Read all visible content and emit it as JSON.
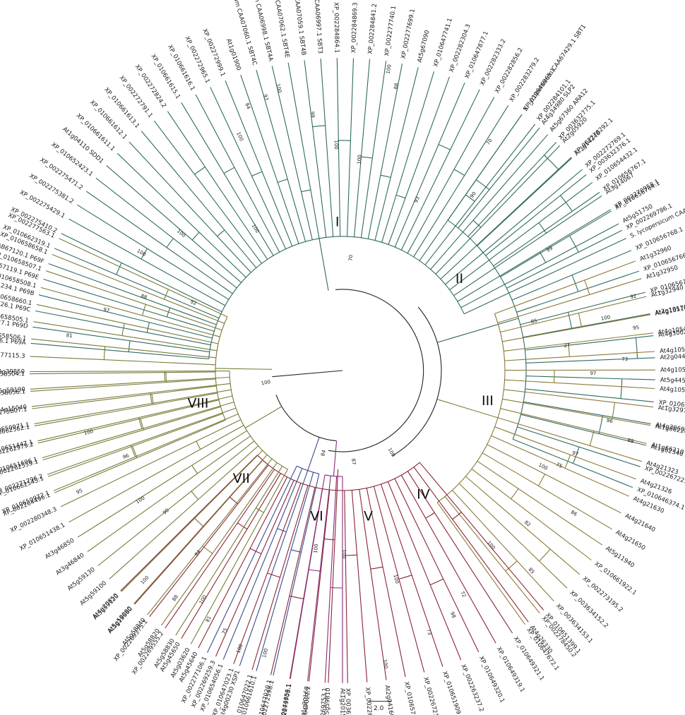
{
  "tree": {
    "scale_label": "2.0",
    "clades": [
      {
        "label": "I",
        "color": "#2f6b60",
        "deg": -92
      },
      {
        "label": "II",
        "color": "#2f6b60",
        "deg": -38
      },
      {
        "label": "III",
        "color": "#8a7a38",
        "deg": 12
      },
      {
        "label": "IV",
        "color": "#8a2535",
        "deg": 57
      },
      {
        "label": "V",
        "color": "#8a2a7a",
        "deg": 80
      },
      {
        "label": "VI",
        "color": "#3a4b8c",
        "deg": 100
      },
      {
        "label": "VII",
        "color": "#7a7a3a",
        "deg": 133
      },
      {
        "label": "VIII",
        "color": "#7a7a3a",
        "deg": 167
      }
    ],
    "groups": [
      {
        "color": "#2f6b60",
        "start": -175,
        "step": 3.0,
        "tips": [
          "S. lycopersicum CAA64566.1 P69A",
          "S. lycopersicum CAA76727.1 P69D",
          "S. lycopersicum CAA76726.1 P69C",
          "S. lycopersicum CAA71234.1 P69B",
          "S. lycopersicum CAB67119.1 P69E",
          "S. lycopersicum CAB67120.1 P69F",
          "XP_010662319.1",
          "XP_002275410.2",
          "XP_002275429.1",
          "XP_002275381.2",
          "XP_002275471.2",
          "XP_010652423.1",
          "At1g04110 SDD1",
          "XP_010661611.1",
          "XP_010661612.1",
          "XP_010661613.1",
          "XP_002272791.1",
          "XP_002272824.2",
          "XP_010661615.1",
          "XP_010661616.1",
          "XP_002272965.1",
          "XP_002272999.1",
          "At1g01900",
          "S. lycopersicum CAA07060.1 SBT4C",
          "S. lycopersicum CAA06998.1 SBT4A",
          "S. lycopersicum CAA07062.1 SBT4E",
          "S. lycopersicum CAA07059.1 SBT4B",
          "S. lycopersicum CAA06997.1 SBT3",
          "XP_002284864.1",
          "XP_002284869.3",
          "XP_002284841.2",
          "XP_002277740.1",
          "XP_002277699.1",
          "At5g67090",
          "XP_010647741.1",
          "XP_002282304.3",
          "XP_010647877.1",
          "XP_002282333.2",
          "XP_002282856.2",
          "XP_002283279.2",
          "S. lycopersicum CAA67429.1 SBT1",
          "XP_002284101.1",
          "At5g67360 ARA12",
          "At2g05920",
          "XP_002278292.1",
          "XP_002272769.1",
          "XP_010654432.1",
          "At3g14067",
          "XP_002270958.1",
          "At5g51750",
          "S. lycopersicum CAA67430.1 SBT2"
        ]
      },
      {
        "color": "#2f6b60",
        "start": -55,
        "step": 4.05,
        "tips": [
          "XP_010646965.1",
          "At4g34980 SLP2",
          "XP_003632775.1",
          "At3g14240",
          "XP_003632376.1",
          "XP_010656767.1",
          "XP_010656764.1",
          "XP_002269786.1",
          "XP_010656768.1",
          "XP_010656766.1",
          "XP_010656765.1",
          "At2g19170 SLP3",
          "At4g30020",
          "At2g04430",
          "At5g44530",
          "XP_010655857.1",
          "At4g30600",
          "At1g62340 ALE1",
          "XP_002267221.2",
          "XP_010646374.1"
        ]
      },
      {
        "color": "#8a7a38",
        "start": -20.5,
        "step": 3.4,
        "tips": [
          "At1g32960",
          "At1g32950",
          "At1g32940",
          "At4g10510",
          "At4g10540",
          "At4g10550",
          "At4g10530",
          "At4g10520",
          "At1g32970",
          "At1g66220",
          "At1g66210",
          "At4g21323",
          "At4g21326",
          "At4g21630",
          "At4g21640",
          "At4g21650",
          "At5g11940",
          "XP_010661922.1",
          "XP_002273195.2",
          "XP_003634152.2",
          "XP_003634153.1",
          "XP_002278450.2",
          "XP_010647672.1"
        ]
      },
      {
        "color": "#8a2535",
        "start": 50,
        "step": 3.55,
        "tips": [
          "XP_010651399.1",
          "At4g26330",
          "XP_010649321.1",
          "XP_010649319.1",
          "XP_010649320.1",
          "XP_002263237.2",
          "XP_010651909.1",
          "XP_002267218.1",
          "XP_010657502.1",
          "At2g04160 AIR3",
          "XP_002269456.2",
          "XP_003635515.1",
          "At5g59810",
          "XP_010647021.1",
          "XP_010644656.1",
          "XP_010647020.1",
          "XP_010647022.1",
          "XP_010647023.1",
          "XP_002269259.3",
          "At5g45640",
          "At5g45650",
          "XP_002269555.2",
          "XP_002269375.1",
          "At5g19660",
          "At4g20850"
        ]
      },
      {
        "color": "#8a2a7a",
        "start": 90,
        "step": 3.2,
        "tips": [
          "At1g20150",
          "XP_002269753.1",
          "At1g20160",
          "XP_002273703.1"
        ]
      },
      {
        "color": "#3a4b8c",
        "start": 102.8,
        "step": 3.2,
        "tips": [
          "XP_002272598.1",
          "XP_010661610.1",
          "At4g00230 XSP1",
          "XP_010654056.1",
          "XP_002277106.1"
        ]
      },
      {
        "color": "#7a7a3a",
        "start": 119,
        "step": 3.2,
        "tips": [
          "At5g03620",
          "At5g58830",
          "At5g58820",
          "At5g58840",
          "At5g59090",
          "At5g59120",
          "At5g59100",
          "At5g59130",
          "At3g46840",
          "At3g46850",
          "XP_010651438.1",
          "XP_002280348.3",
          "XP_010650972.1",
          "XP_002271796.2",
          "XP_010651696.1",
          "XP_010651447.1",
          "XP_010650971.1",
          "At4g15040",
          "At5g59190",
          "At2g39850"
        ]
      },
      {
        "color": "#7a7a3a",
        "start": 157,
        "step": 3.2,
        "tips": [
          "XP_002264496.1",
          "XP_010662545.1",
          "XP_002262559.1",
          "XP_002262979.2",
          "XP_010662562.1",
          "XP_002275807.1",
          "XP_010658656.1",
          "XP_010658504.1",
          "XP_002277115.3",
          "XP_010658506.1",
          "XP_010658505.1",
          "XP_010658660.1",
          "XP_010658508.1",
          "XP_010658507.1",
          "XP_010658658.1",
          "XP_002277563.1"
        ]
      }
    ],
    "support": [
      {
        "v": "100",
        "deg": -122,
        "r": 236
      },
      {
        "v": "92",
        "deg": -156,
        "r": 232
      },
      {
        "v": "88",
        "deg": -160,
        "r": 300
      },
      {
        "v": "97",
        "deg": -166,
        "r": 345
      },
      {
        "v": "81",
        "deg": -173,
        "r": 390
      },
      {
        "v": "100",
        "deg": -150,
        "r": 330
      },
      {
        "v": "100",
        "deg": -140,
        "r": 300
      },
      {
        "v": "100",
        "deg": -114,
        "r": 362
      },
      {
        "v": "84",
        "deg": -110,
        "r": 398
      },
      {
        "v": "97",
        "deg": -106,
        "r": 402
      },
      {
        "v": "100",
        "deg": -103,
        "r": 410
      },
      {
        "v": "99",
        "deg": -97,
        "r": 365
      },
      {
        "v": "100",
        "deg": -92,
        "r": 320
      },
      {
        "v": "100",
        "deg": -85,
        "r": 300
      },
      {
        "v": "70",
        "deg": -85,
        "r": 160
      },
      {
        "v": "88",
        "deg": -79,
        "r": 410
      },
      {
        "v": "100",
        "deg": -81,
        "r": 432
      },
      {
        "v": "93",
        "deg": -66,
        "r": 264
      },
      {
        "v": "90",
        "deg": -53,
        "r": 310
      },
      {
        "v": "70",
        "deg": -57,
        "r": 385
      },
      {
        "v": "99",
        "deg": -30,
        "r": 340
      },
      {
        "v": "85",
        "deg": -14,
        "r": 280
      },
      {
        "v": "100",
        "deg": -11,
        "r": 380
      },
      {
        "v": "27",
        "deg": -6,
        "r": 320
      },
      {
        "v": "97",
        "deg": 1,
        "r": 355
      },
      {
        "v": "96",
        "deg": 11,
        "r": 385
      },
      {
        "v": "73",
        "deg": -2,
        "r": 400
      },
      {
        "v": "89",
        "deg": 14,
        "r": 420
      },
      {
        "v": "95",
        "deg": -8,
        "r": 420
      },
      {
        "v": "92",
        "deg": -14,
        "r": 425
      },
      {
        "v": "97",
        "deg": 20,
        "r": 350
      },
      {
        "v": "75",
        "deg": 24,
        "r": 335
      },
      {
        "v": "100",
        "deg": 26,
        "r": 315
      },
      {
        "v": "86",
        "deg": 32,
        "r": 385
      },
      {
        "v": "82",
        "deg": 40,
        "r": 340
      },
      {
        "v": "85",
        "deg": 47,
        "r": 390
      },
      {
        "v": "100",
        "deg": 50,
        "r": 325
      },
      {
        "v": "72",
        "deg": 62,
        "r": 360
      },
      {
        "v": "98",
        "deg": 66,
        "r": 380
      },
      {
        "v": "73",
        "deg": 72,
        "r": 390
      },
      {
        "v": "100",
        "deg": 76,
        "r": 305
      },
      {
        "v": "100",
        "deg": 82,
        "r": 420
      },
      {
        "v": "100",
        "deg": 90,
        "r": 260
      },
      {
        "v": "100",
        "deg": 98,
        "r": 255
      },
      {
        "v": "100",
        "deg": 105,
        "r": 415
      },
      {
        "v": "100",
        "deg": 110,
        "r": 420
      },
      {
        "v": "84",
        "deg": 128,
        "r": 330
      },
      {
        "v": "90",
        "deg": 141,
        "r": 320
      },
      {
        "v": "100",
        "deg": 147,
        "r": 340
      },
      {
        "v": "96",
        "deg": 158,
        "r": 330
      },
      {
        "v": "100",
        "deg": 166,
        "r": 370
      },
      {
        "v": "95",
        "deg": 155,
        "r": 410
      },
      {
        "v": "100",
        "deg": 121,
        "r": 380
      },
      {
        "v": "81",
        "deg": 118,
        "r": 400
      },
      {
        "v": "75",
        "deg": 114,
        "r": 405
      },
      {
        "v": "88",
        "deg": 126,
        "r": 400
      },
      {
        "v": "100",
        "deg": 133,
        "r": 408
      },
      {
        "v": "84",
        "deg": 102,
        "r": 120
      },
      {
        "v": "87",
        "deg": 84,
        "r": 130
      },
      {
        "v": "100",
        "deg": 60,
        "r": 135
      },
      {
        "v": "100",
        "deg": 170,
        "r": 110
      }
    ]
  }
}
